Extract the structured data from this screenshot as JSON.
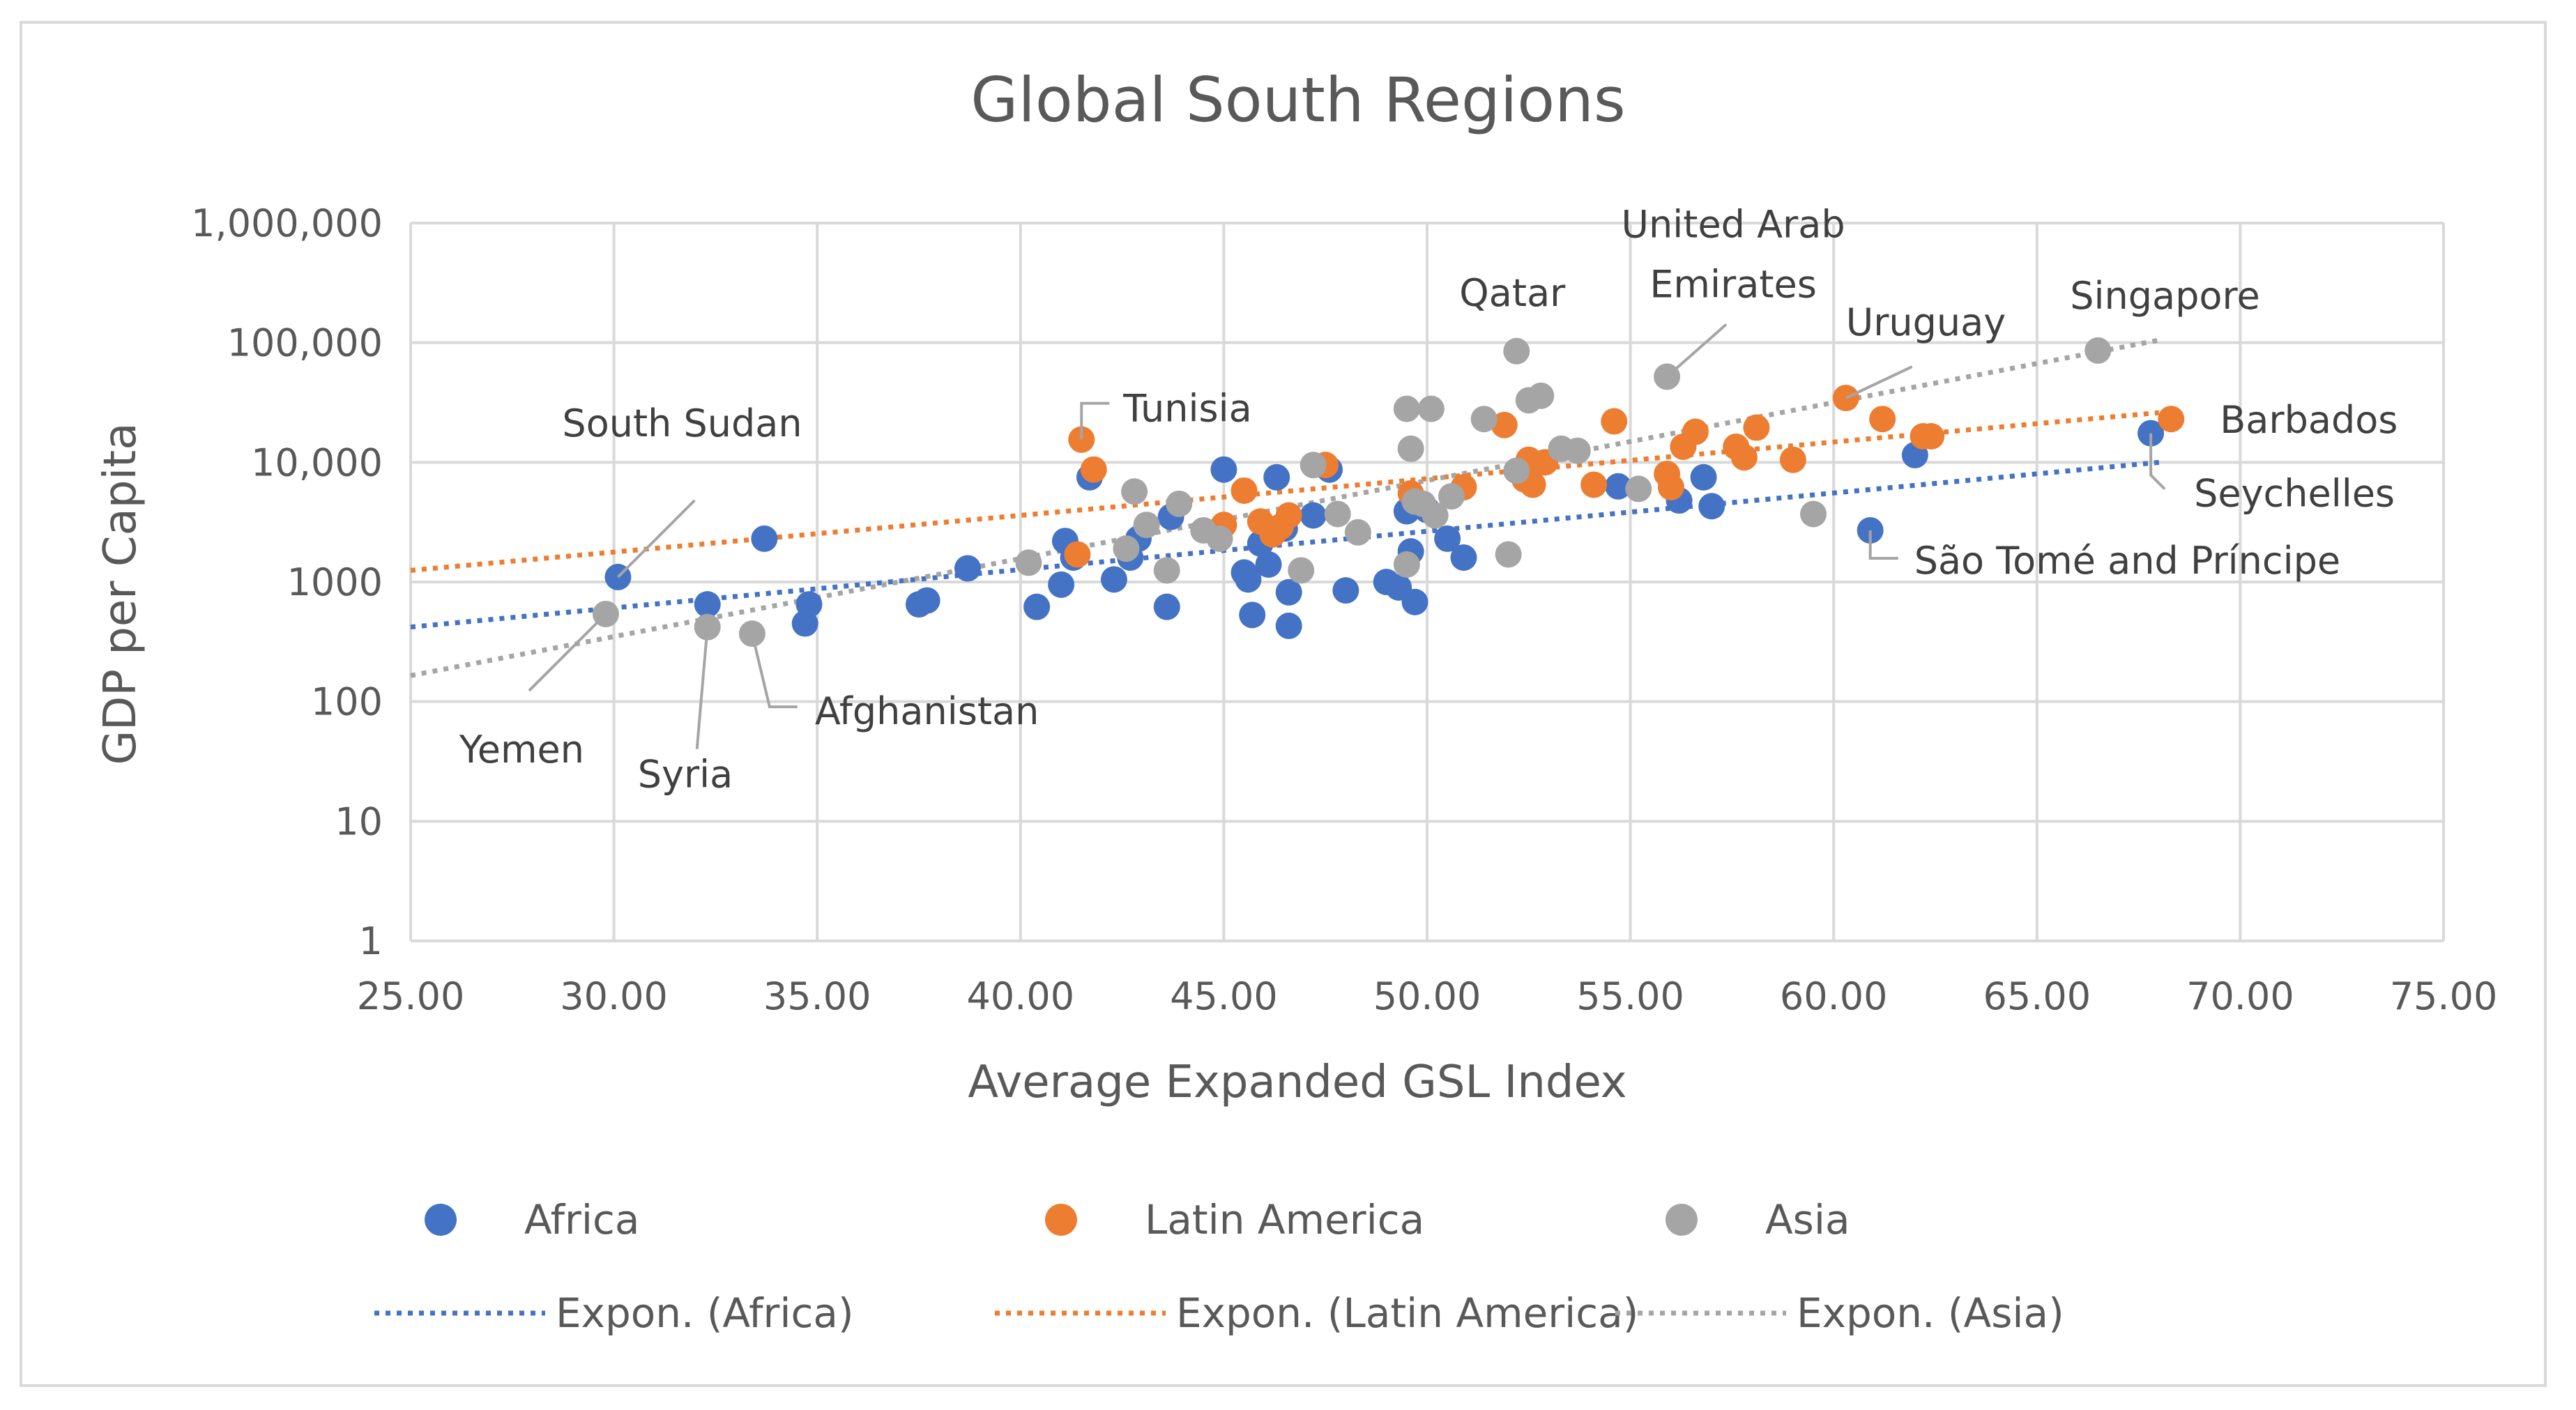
{
  "chart_data": {
    "type": "scatter",
    "title": "Global South Regions",
    "xlabel": "Average Expanded GSL Index",
    "ylabel": "GDP per Capita",
    "xlim": [
      25,
      75
    ],
    "ylim": [
      1,
      1000000
    ],
    "yscale": "log",
    "grid": true,
    "legend_position": "bottom",
    "x_tick_labels": [
      "25.00",
      "30.00",
      "35.00",
      "40.00",
      "45.00",
      "50.00",
      "55.00",
      "60.00",
      "65.00",
      "70.00",
      "75.00"
    ],
    "y_tick_labels": [
      "1",
      "10",
      "100",
      "1000",
      "10,000",
      "100,000",
      "1,000,000"
    ],
    "series": [
      {
        "name": "Africa",
        "color": "#4472c4",
        "points": [
          [
            30.1,
            1100
          ],
          [
            32.3,
            650
          ],
          [
            33.7,
            2300
          ],
          [
            34.7,
            450
          ],
          [
            34.8,
            650
          ],
          [
            37.5,
            650
          ],
          [
            37.7,
            700
          ],
          [
            38.7,
            1300
          ],
          [
            40.4,
            620
          ],
          [
            41.0,
            950
          ],
          [
            41.1,
            2200
          ],
          [
            41.3,
            1600
          ],
          [
            41.7,
            7500
          ],
          [
            42.3,
            1050
          ],
          [
            42.7,
            1600
          ],
          [
            42.9,
            2300
          ],
          [
            43.6,
            620
          ],
          [
            43.7,
            3500
          ],
          [
            44.8,
            2600
          ],
          [
            45.0,
            8700
          ],
          [
            45.5,
            1200
          ],
          [
            45.6,
            1050
          ],
          [
            45.7,
            530
          ],
          [
            45.9,
            2100
          ],
          [
            46.1,
            1400
          ],
          [
            46.3,
            7500
          ],
          [
            46.5,
            2800
          ],
          [
            46.6,
            820
          ],
          [
            46.6,
            430
          ],
          [
            47.2,
            3600
          ],
          [
            47.6,
            8700
          ],
          [
            48.0,
            850
          ],
          [
            49.0,
            1000
          ],
          [
            49.3,
            900
          ],
          [
            49.5,
            3900
          ],
          [
            49.6,
            1800
          ],
          [
            49.7,
            680
          ],
          [
            50.0,
            4000
          ],
          [
            50.5,
            2300
          ],
          [
            50.9,
            1600
          ],
          [
            54.7,
            6300
          ],
          [
            56.2,
            4800
          ],
          [
            56.8,
            7500
          ],
          [
            57.0,
            4300
          ],
          [
            60.9,
            2700
          ],
          [
            62.0,
            11500
          ],
          [
            67.8,
            17500
          ]
        ]
      },
      {
        "name": "Latin America",
        "color": "#ed7d31",
        "points": [
          [
            41.4,
            1700
          ],
          [
            41.5,
            15500
          ],
          [
            41.8,
            8700
          ],
          [
            45.0,
            3000
          ],
          [
            45.5,
            5800
          ],
          [
            45.9,
            3200
          ],
          [
            46.2,
            2500
          ],
          [
            46.4,
            2900
          ],
          [
            46.6,
            3600
          ],
          [
            47.5,
            9500
          ],
          [
            49.6,
            5500
          ],
          [
            50.9,
            6200
          ],
          [
            51.9,
            20500
          ],
          [
            52.4,
            7200
          ],
          [
            52.5,
            10500
          ],
          [
            52.6,
            6500
          ],
          [
            52.9,
            10000
          ],
          [
            54.1,
            6500
          ],
          [
            54.6,
            22000
          ],
          [
            55.9,
            8000
          ],
          [
            56.0,
            6200
          ],
          [
            56.3,
            13500
          ],
          [
            56.6,
            18000
          ],
          [
            57.6,
            13500
          ],
          [
            57.8,
            11000
          ],
          [
            58.1,
            19500
          ],
          [
            59.0,
            10500
          ],
          [
            60.3,
            34500
          ],
          [
            61.2,
            23000
          ],
          [
            62.2,
            16500
          ],
          [
            62.4,
            16500
          ],
          [
            68.3,
            23000
          ]
        ]
      },
      {
        "name": "Asia",
        "color": "#a5a5a5",
        "points": [
          [
            29.8,
            540
          ],
          [
            32.3,
            420
          ],
          [
            33.4,
            370
          ],
          [
            40.2,
            1450
          ],
          [
            42.6,
            1900
          ],
          [
            42.8,
            5700
          ],
          [
            43.1,
            3000
          ],
          [
            43.6,
            1250
          ],
          [
            43.9,
            4500
          ],
          [
            44.5,
            2700
          ],
          [
            44.9,
            2300
          ],
          [
            46.9,
            1250
          ],
          [
            47.2,
            9500
          ],
          [
            47.8,
            3700
          ],
          [
            48.3,
            2600
          ],
          [
            49.5,
            28000
          ],
          [
            49.5,
            1400
          ],
          [
            49.6,
            13000
          ],
          [
            49.7,
            4700
          ],
          [
            49.9,
            4500
          ],
          [
            50.1,
            28000
          ],
          [
            50.2,
            3600
          ],
          [
            50.6,
            5200
          ],
          [
            51.4,
            23000
          ],
          [
            52.0,
            1700
          ],
          [
            52.2,
            85000
          ],
          [
            52.2,
            8500
          ],
          [
            52.5,
            33000
          ],
          [
            52.8,
            36000
          ],
          [
            53.3,
            13000
          ],
          [
            53.7,
            12500
          ],
          [
            55.2,
            6000
          ],
          [
            55.9,
            52000
          ],
          [
            59.5,
            3700
          ],
          [
            66.5,
            86000
          ]
        ]
      }
    ],
    "trendlines": [
      {
        "name": "Expon. (Africa)",
        "color": "#4472c4",
        "x": [
          25,
          68
        ],
        "y": [
          420,
          10000
        ]
      },
      {
        "name": "Expon. (Latin America)",
        "color": "#ed7d31",
        "x": [
          25,
          68
        ],
        "y": [
          1250,
          26000
        ]
      },
      {
        "name": "Expon. (Asia)",
        "color": "#a5a5a5",
        "x": [
          25,
          68
        ],
        "y": [
          165,
          105000
        ]
      }
    ],
    "annotations": [
      {
        "text": "South Sudan",
        "lines": [
          "South Sudan"
        ],
        "x": 30.1,
        "y": 1100,
        "color": "#a5a5a5"
      },
      {
        "text": "Yemen",
        "lines": [
          "Yemen"
        ],
        "x": 29.8,
        "y": 540,
        "color": "#a5a5a5"
      },
      {
        "text": "Syria",
        "lines": [
          "Syria"
        ],
        "x": 32.3,
        "y": 420,
        "color": "#a5a5a5"
      },
      {
        "text": "Afghanistan",
        "lines": [
          "Afghanistan"
        ],
        "x": 33.4,
        "y": 370,
        "color": "#a5a5a5"
      },
      {
        "text": "Tunisia",
        "lines": [
          "Tunisia"
        ],
        "x": 41.5,
        "y": 15500,
        "color": "#a5a5a5"
      },
      {
        "text": "Qatar",
        "lines": [
          "Qatar"
        ],
        "x": 52.2,
        "y": 85000,
        "color": "#a5a5a5"
      },
      {
        "text": "United Arab Emirates",
        "lines": [
          "United Arab",
          "Emirates"
        ],
        "x": 55.9,
        "y": 52000,
        "color": "#a5a5a5"
      },
      {
        "text": "Uruguay",
        "lines": [
          "Uruguay"
        ],
        "x": 60.3,
        "y": 34500,
        "color": "#a5a5a5"
      },
      {
        "text": "Singapore",
        "lines": [
          "Singapore"
        ],
        "x": 66.5,
        "y": 86000,
        "color": "#a5a5a5"
      },
      {
        "text": "Barbados",
        "lines": [
          "Barbados"
        ],
        "x": 68.3,
        "y": 23000,
        "color": "#a5a5a5"
      },
      {
        "text": "Seychelles",
        "lines": [
          "Seychelles"
        ],
        "x": 67.8,
        "y": 17500,
        "color": "#a5a5a5"
      },
      {
        "text": "São Tomé and Príncipe",
        "lines": [
          "São Tomé and Príncipe"
        ],
        "x": 60.9,
        "y": 2700,
        "color": "#a5a5a5"
      }
    ],
    "legend": [
      {
        "label": "Africa",
        "kind": "marker",
        "color": "#4472c4"
      },
      {
        "label": "Latin America",
        "kind": "marker",
        "color": "#ed7d31"
      },
      {
        "label": "Asia",
        "kind": "marker",
        "color": "#a5a5a5"
      },
      {
        "label": "Expon. (Africa)",
        "kind": "line",
        "color": "#4472c4"
      },
      {
        "label": "Expon. (Latin America)",
        "kind": "line",
        "color": "#ed7d31"
      },
      {
        "label": "Expon. (Asia)",
        "kind": "line",
        "color": "#a5a5a5"
      }
    ]
  }
}
